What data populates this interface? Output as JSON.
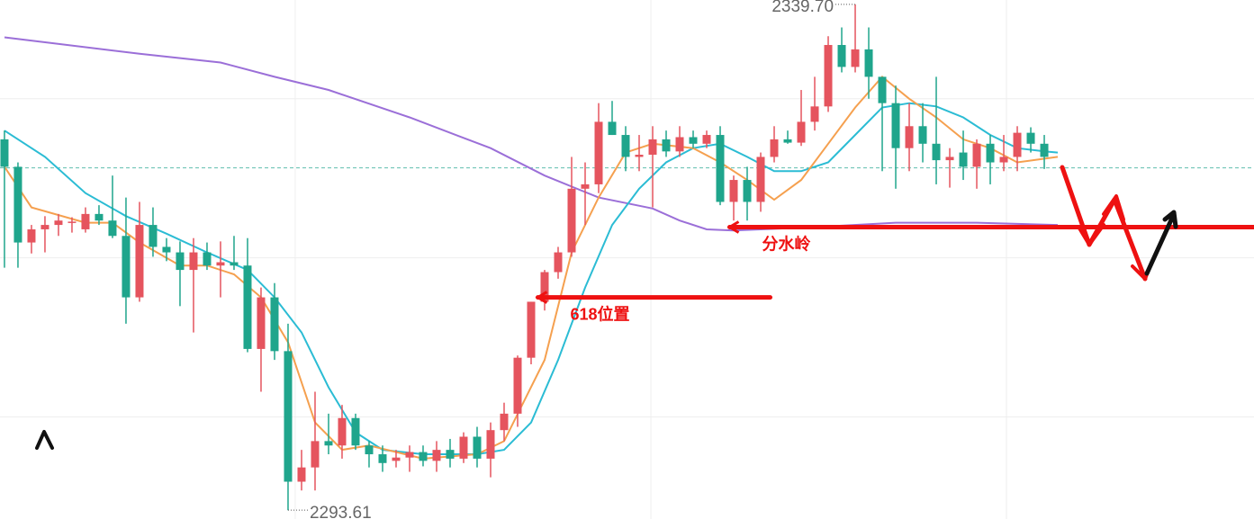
{
  "chart_data": {
    "type": "candlestick",
    "xlim": [
      -0.33,
      92.53
    ],
    "ylim": [
      2292.8,
      2340.1
    ],
    "up_color": "#e5545e",
    "down_color": "#1fa58c",
    "grid": true,
    "grid_lines": {
      "x": [
        21.53,
        47.87,
        74.2
      ],
      "y": [
        2331.1,
        2316.6,
        2302.1
      ]
    },
    "last_price": 2324.8,
    "last_price_color": "#5fbfae",
    "candles": [
      [
        2327.4,
        2328.2,
        2315.7,
        2324.9
      ],
      [
        2324.9,
        2325.3,
        2315.7,
        2318.0
      ],
      [
        2318.0,
        2319.6,
        2317.0,
        2319.2
      ],
      [
        2319.2,
        2320.4,
        2317.1,
        2319.6
      ],
      [
        2319.6,
        2320.6,
        2318.6,
        2320.0
      ],
      [
        2319.8,
        2320.3,
        2318.9,
        2319.9
      ],
      [
        2319.2,
        2321.2,
        2318.9,
        2320.6
      ],
      [
        2320.6,
        2321.4,
        2319.6,
        2320.0
      ],
      [
        2320.0,
        2324.1,
        2318.4,
        2318.6
      ],
      [
        2318.6,
        2322.1,
        2310.6,
        2313.0
      ],
      [
        2313.0,
        2321.7,
        2312.6,
        2319.6
      ],
      [
        2319.6,
        2321.2,
        2316.7,
        2317.6
      ],
      [
        2317.6,
        2318.4,
        2316.3,
        2317.1
      ],
      [
        2317.1,
        2318.1,
        2312.2,
        2315.5
      ],
      [
        2315.5,
        2318.4,
        2309.8,
        2317.1
      ],
      [
        2317.1,
        2318.0,
        2315.5,
        2315.9
      ],
      [
        2315.9,
        2318.1,
        2313.0,
        2316.2
      ],
      [
        2316.2,
        2318.6,
        2315.5,
        2315.9
      ],
      [
        2315.9,
        2318.4,
        2308.0,
        2308.3
      ],
      [
        2308.3,
        2313.9,
        2304.4,
        2313.0
      ],
      [
        2313.0,
        2314.3,
        2307.3,
        2308.1
      ],
      [
        2308.1,
        2310.6,
        2293.6,
        2296.2
      ],
      [
        2296.2,
        2299.1,
        2295.4,
        2297.5
      ],
      [
        2297.5,
        2304.4,
        2295.4,
        2299.9
      ],
      [
        2299.9,
        2302.4,
        2298.7,
        2299.5
      ],
      [
        2299.5,
        2303.2,
        2298.3,
        2302.0
      ],
      [
        2302.0,
        2302.4,
        2299.1,
        2299.5
      ],
      [
        2299.5,
        2299.9,
        2297.5,
        2298.7
      ],
      [
        2298.7,
        2299.5,
        2297.1,
        2297.9
      ],
      [
        2298.1,
        2299.1,
        2297.5,
        2298.4
      ],
      [
        2298.4,
        2299.5,
        2297.1,
        2298.9
      ],
      [
        2298.9,
        2299.5,
        2297.6,
        2298.1
      ],
      [
        2298.1,
        2299.9,
        2297.1,
        2299.1
      ],
      [
        2299.1,
        2300.1,
        2297.5,
        2298.3
      ],
      [
        2298.3,
        2300.7,
        2297.9,
        2300.3
      ],
      [
        2300.3,
        2301.2,
        2297.5,
        2298.3
      ],
      [
        2298.3,
        2301.6,
        2296.6,
        2300.9
      ],
      [
        2300.9,
        2303.4,
        2299.9,
        2302.4
      ],
      [
        2302.4,
        2307.7,
        2301.2,
        2307.5
      ],
      [
        2307.5,
        2312.6,
        2306.9,
        2312.6
      ],
      [
        2312.6,
        2315.5,
        2311.8,
        2315.3
      ],
      [
        2315.3,
        2317.6,
        2314.7,
        2317.1
      ],
      [
        2317.1,
        2325.8,
        2316.7,
        2322.9
      ],
      [
        2322.9,
        2325.3,
        2319.6,
        2323.3
      ],
      [
        2323.3,
        2330.7,
        2322.5,
        2329.0
      ],
      [
        2329.0,
        2330.9,
        2327.8,
        2327.8
      ],
      [
        2327.8,
        2328.6,
        2324.5,
        2325.8
      ],
      [
        2325.8,
        2327.8,
        2324.5,
        2326.0
      ],
      [
        2326.0,
        2328.6,
        2321.2,
        2327.4
      ],
      [
        2327.4,
        2328.2,
        2325.8,
        2326.3
      ],
      [
        2326.3,
        2328.6,
        2325.8,
        2327.6
      ],
      [
        2327.6,
        2328.2,
        2326.6,
        2327.0
      ],
      [
        2327.0,
        2328.2,
        2326.6,
        2327.8
      ],
      [
        2327.8,
        2328.6,
        2321.4,
        2321.7
      ],
      [
        2321.7,
        2324.1,
        2320.0,
        2323.7
      ],
      [
        2323.7,
        2324.9,
        2320.0,
        2321.7
      ],
      [
        2321.7,
        2326.2,
        2320.8,
        2325.8
      ],
      [
        2325.8,
        2328.6,
        2325.3,
        2327.4
      ],
      [
        2327.4,
        2328.2,
        2327.0,
        2327.1
      ],
      [
        2327.1,
        2331.9,
        2326.8,
        2329.0
      ],
      [
        2329.0,
        2333.1,
        2328.2,
        2330.4
      ],
      [
        2330.4,
        2336.8,
        2329.9,
        2336.0
      ],
      [
        2336.0,
        2337.6,
        2333.5,
        2334.0
      ],
      [
        2334.0,
        2339.7,
        2333.5,
        2335.6
      ],
      [
        2335.6,
        2337.6,
        2331.1,
        2333.1
      ],
      [
        2333.1,
        2333.1,
        2324.5,
        2330.7
      ],
      [
        2330.7,
        2332.3,
        2322.9,
        2326.6
      ],
      [
        2326.6,
        2330.7,
        2324.5,
        2328.6
      ],
      [
        2328.6,
        2330.7,
        2325.3,
        2327.0
      ],
      [
        2327.0,
        2333.1,
        2323.3,
        2325.5
      ],
      [
        2325.5,
        2326.6,
        2323.0,
        2325.8
      ],
      [
        2326.2,
        2328.2,
        2323.7,
        2324.9
      ],
      [
        2324.9,
        2327.4,
        2322.9,
        2327.0
      ],
      [
        2327.0,
        2327.8,
        2323.3,
        2325.3
      ],
      [
        2325.3,
        2327.8,
        2324.5,
        2325.8
      ],
      [
        2325.8,
        2328.6,
        2324.5,
        2328.0
      ],
      [
        2328.0,
        2328.5,
        2326.2,
        2327.0
      ],
      [
        2327.0,
        2327.8,
        2324.7,
        2325.8
      ]
    ],
    "series": [
      {
        "color": "#9b6fd8",
        "x": [
          0,
          10,
          16,
          20,
          24,
          30,
          36,
          40,
          44,
          48,
          50,
          52,
          54,
          60,
          66,
          72,
          78
        ],
        "values": [
          2336.7,
          2335.2,
          2334.4,
          2333.1,
          2331.9,
          2329.4,
          2326.6,
          2324.1,
          2322.1,
          2321.1,
          2320.0,
          2319.2,
          2319.1,
          2319.4,
          2319.8,
          2319.8,
          2319.6
        ]
      },
      {
        "color": "#2bbcd4",
        "x": [
          0,
          3,
          6,
          9,
          12,
          15,
          18,
          20,
          22,
          24,
          26,
          28,
          31,
          35,
          37,
          39,
          41,
          43,
          45,
          47,
          49,
          51,
          53,
          55,
          57,
          59,
          61,
          63,
          65,
          67,
          69,
          71,
          73,
          75,
          77,
          78
        ],
        "values": [
          2328.2,
          2325.8,
          2322.5,
          2320.4,
          2318.8,
          2317.1,
          2315.5,
          2313.0,
          2309.8,
          2304.8,
          2300.7,
          2299.1,
          2298.7,
          2298.7,
          2299.1,
          2301.6,
          2307.3,
          2313.9,
          2319.6,
          2322.9,
          2325.3,
          2326.6,
          2327.0,
          2325.8,
          2324.5,
          2324.5,
          2325.3,
          2327.8,
          2330.3,
          2330.7,
          2330.4,
          2329.4,
          2327.8,
          2326.6,
          2326.3,
          2326.2
        ]
      },
      {
        "color": "#f5a04f",
        "x": [
          0,
          2,
          6,
          8,
          10,
          13,
          15,
          17,
          19,
          21,
          23,
          25,
          27,
          31,
          35,
          37,
          40,
          42,
          44,
          46,
          48,
          51,
          53,
          55,
          57,
          59,
          61,
          63,
          65,
          67,
          69,
          71,
          73,
          75,
          78
        ],
        "values": [
          2324.9,
          2321.2,
          2319.8,
          2319.8,
          2318.0,
          2315.9,
          2315.9,
          2315.1,
          2313.0,
          2308.9,
          2301.6,
          2299.1,
          2299.5,
          2298.3,
          2298.7,
          2299.9,
          2307.3,
          2317.1,
          2322.1,
          2326.2,
          2327.0,
          2326.6,
          2325.3,
          2323.7,
          2321.9,
          2323.7,
          2327.0,
          2330.3,
          2333.1,
          2331.1,
          2329.4,
          2327.4,
          2326.6,
          2325.3,
          2325.8
        ]
      }
    ],
    "extremes": [
      {
        "candle": 63,
        "value": 2339.7,
        "label": "2339.70",
        "side": "left"
      },
      {
        "candle": 21,
        "value": 2293.61,
        "label": "2293.61",
        "side": "right"
      }
    ],
    "annotations": [
      {
        "label": "分水岭",
        "value": 2319.4,
        "x": [
          53.7,
          92.53
        ],
        "color": "#ee1111"
      },
      {
        "label": "618位置",
        "value": 2313.0,
        "x": [
          39.5,
          56.7
        ],
        "color": "#ee1111"
      }
    ]
  }
}
